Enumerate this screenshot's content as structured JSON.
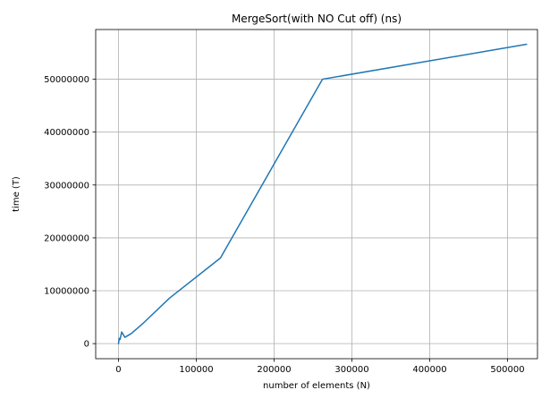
{
  "chart_data": {
    "type": "line",
    "title": "MergeSort(with NO Cut off) (ns)",
    "xlabel": "number of elements (N)",
    "ylabel": "time (T)",
    "xlim": [
      -29300,
      538500
    ],
    "ylim": [
      -2850000,
      59400000
    ],
    "xticks": [
      0,
      100000,
      200000,
      300000,
      400000,
      500000
    ],
    "yticks": [
      0,
      10000000,
      20000000,
      30000000,
      40000000,
      50000000
    ],
    "grid": true,
    "series": [
      {
        "color": "#1f77b4",
        "x": [
          16,
          32,
          64,
          128,
          256,
          512,
          1024,
          2048,
          4096,
          8192,
          16384,
          32768,
          65536,
          131072,
          262144,
          524288
        ],
        "y": [
          20000,
          30000,
          60000,
          120000,
          250000,
          500000,
          1000000,
          800000,
          2200000,
          1200000,
          1900000,
          4000000,
          8600000,
          16200000,
          50000000,
          56600000
        ]
      }
    ]
  }
}
